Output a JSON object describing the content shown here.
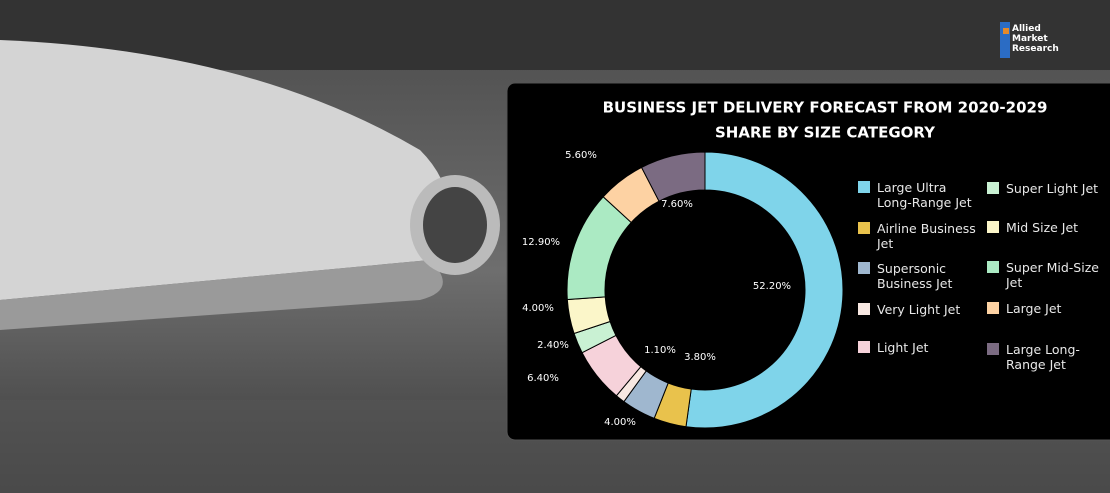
{
  "logo": [
    "Allied",
    "Market",
    "Research"
  ],
  "chart_data": {
    "type": "pie",
    "title": "BUSINESS JET DELIVERY FORECAST FROM 2020-2029",
    "subtitle": "SHARE BY SIZE CATEGORY",
    "categories": [
      "Large Ultra Long-Range Jet",
      "Airline Business Jet",
      "Supersonic Business Jet",
      "Very Light Jet",
      "Light Jet",
      "Super Light Jet",
      "Mid Size Jet",
      "Super Mid-Size Jet",
      "Large Jet",
      "Large Long-Range Jet"
    ],
    "values": [
      52.2,
      3.8,
      4.0,
      1.1,
      6.4,
      2.4,
      4.0,
      12.9,
      5.6,
      7.6
    ],
    "value_labels": [
      "52.20%",
      "3.80%",
      "4.00%",
      "1.10%",
      "6.40%",
      "2.40%",
      "4.00%",
      "12.90%",
      "5.60%",
      "7.60%"
    ],
    "colors": [
      "#7fd4ea",
      "#e9c24c",
      "#9fb7cf",
      "#f8e8e2",
      "#f6d2da",
      "#c9f1d3",
      "#fbf6c9",
      "#abeac3",
      "#fdd2a3",
      "#7b6b82"
    ],
    "donut": true
  }
}
